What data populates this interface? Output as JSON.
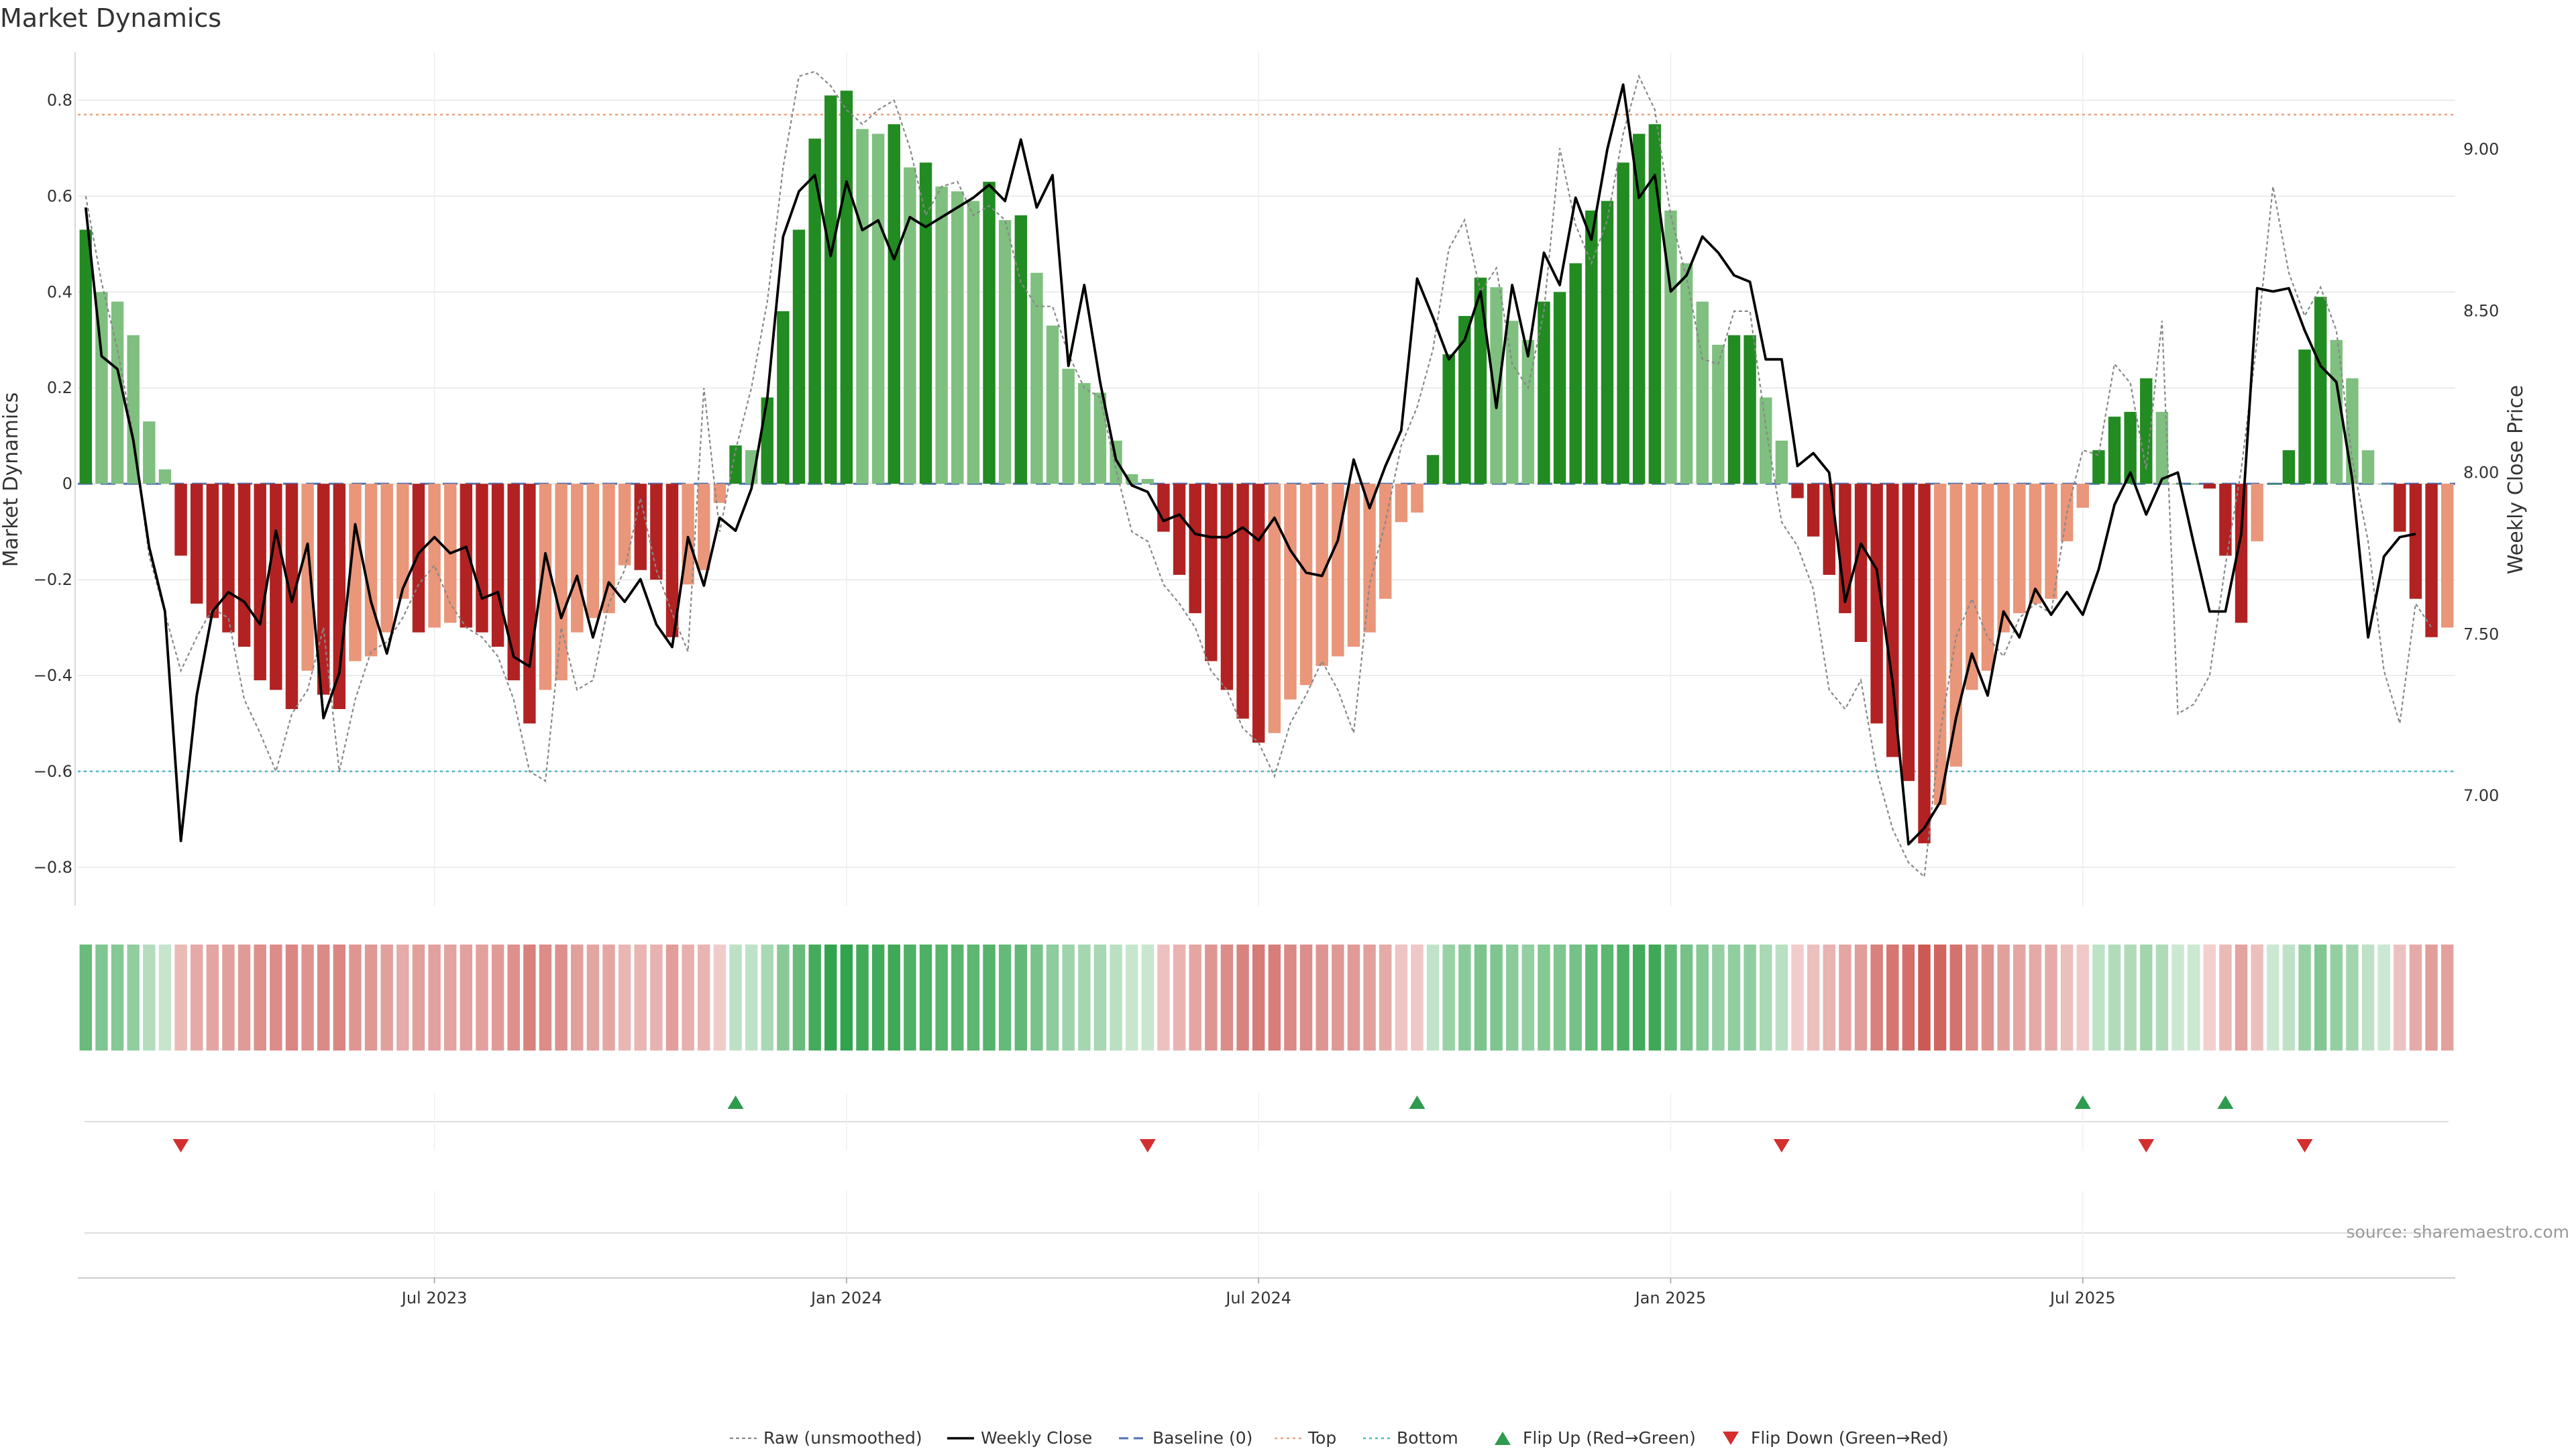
{
  "chart_data": {
    "type": "bar",
    "title": "Market Dynamics",
    "ylabel_left": "Market Dynamics",
    "ylabel_right": "Weekly Close Price",
    "ylim_left": [
      -0.88,
      0.9
    ],
    "ylim_right": [
      6.66,
      9.3
    ],
    "yticks_left": [
      0.8,
      0.6,
      0.4,
      0.2,
      0,
      -0.2,
      -0.4,
      -0.6,
      -0.8
    ],
    "yticks_left_labels": [
      "0.8",
      "0.6",
      "0.4",
      "0.2",
      "0",
      "−0.2",
      "−0.4",
      "−0.6",
      "−0.8"
    ],
    "yticks_right": [
      9.0,
      8.5,
      8.0,
      7.5,
      7.0
    ],
    "yticks_right_labels": [
      "9.00",
      "8.50",
      "8.00",
      "7.50",
      "7.00"
    ],
    "xticks": [
      {
        "label": "Jul 2023",
        "week": 22
      },
      {
        "label": "Jan 2024",
        "week": 48
      },
      {
        "label": "Jul 2024",
        "week": 74
      },
      {
        "label": "Jan 2025",
        "week": 100
      },
      {
        "label": "Jul 2025",
        "week": 126
      }
    ],
    "top_level": 0.77,
    "bottom_level": -0.6,
    "baseline": 0,
    "series": [
      {
        "name": "Market Dynamics",
        "values": [
          0.53,
          0.4,
          0.38,
          0.31,
          0.13,
          0.03,
          -0.15,
          -0.25,
          -0.28,
          -0.31,
          -0.34,
          -0.41,
          -0.43,
          -0.47,
          -0.39,
          -0.44,
          -0.47,
          -0.37,
          -0.36,
          -0.31,
          -0.24,
          -0.31,
          -0.3,
          -0.29,
          -0.3,
          -0.31,
          -0.34,
          -0.41,
          -0.5,
          -0.43,
          -0.41,
          -0.31,
          -0.28,
          -0.27,
          -0.17,
          -0.18,
          -0.2,
          -0.32,
          -0.21,
          -0.18,
          -0.04,
          0.08,
          0.07,
          0.18,
          0.36,
          0.53,
          0.72,
          0.81,
          0.82,
          0.74,
          0.73,
          0.75,
          0.66,
          0.67,
          0.62,
          0.61,
          0.59,
          0.63,
          0.55,
          0.56,
          0.44,
          0.33,
          0.24,
          0.21,
          0.19,
          0.09,
          0.02,
          0.01,
          -0.1,
          -0.19,
          -0.27,
          -0.37,
          -0.43,
          -0.49,
          -0.54,
          -0.52,
          -0.45,
          -0.42,
          -0.38,
          -0.36,
          -0.34,
          -0.31,
          -0.24,
          -0.08,
          -0.06,
          0.06,
          0.27,
          0.35,
          0.43,
          0.41,
          0.34,
          0.3,
          0.38,
          0.4,
          0.46,
          0.57,
          0.59,
          0.67,
          0.73,
          0.75,
          0.57,
          0.46,
          0.38,
          0.29,
          0.31,
          0.31,
          0.18,
          0.09,
          -0.03,
          -0.11,
          -0.19,
          -0.27,
          -0.33,
          -0.5,
          -0.57,
          -0.62,
          -0.75,
          -0.67,
          -0.59,
          -0.43,
          -0.39,
          -0.31,
          -0.27,
          -0.25,
          -0.24,
          -0.12,
          -0.05,
          0.07,
          0.14,
          0.15,
          0.22,
          0.15,
          0.0,
          0.0,
          -0.01,
          -0.15,
          -0.29,
          -0.12,
          0.0,
          0.07,
          0.28,
          0.39,
          0.3,
          0.22,
          0.07,
          0.0,
          -0.1,
          -0.24,
          -0.32,
          -0.3
        ]
      },
      {
        "name": "Raw (unsmoothed)",
        "values": [
          0.6,
          0.42,
          0.28,
          0.1,
          -0.15,
          -0.27,
          -0.39,
          -0.32,
          -0.26,
          -0.28,
          -0.45,
          -0.52,
          -0.6,
          -0.48,
          -0.43,
          -0.3,
          -0.6,
          -0.45,
          -0.35,
          -0.33,
          -0.28,
          -0.21,
          -0.17,
          -0.25,
          -0.3,
          -0.32,
          -0.36,
          -0.45,
          -0.6,
          -0.62,
          -0.3,
          -0.43,
          -0.41,
          -0.25,
          -0.18,
          -0.03,
          -0.18,
          -0.27,
          -0.35,
          0.2,
          -0.1,
          0.07,
          0.2,
          0.38,
          0.66,
          0.85,
          0.86,
          0.83,
          0.78,
          0.75,
          0.78,
          0.8,
          0.7,
          0.56,
          0.62,
          0.63,
          0.56,
          0.58,
          0.55,
          0.42,
          0.37,
          0.37,
          0.27,
          0.2,
          0.18,
          0.03,
          -0.1,
          -0.12,
          -0.21,
          -0.25,
          -0.3,
          -0.39,
          -0.43,
          -0.51,
          -0.54,
          -0.61,
          -0.5,
          -0.44,
          -0.37,
          -0.43,
          -0.52,
          -0.21,
          -0.08,
          0.08,
          0.16,
          0.28,
          0.49,
          0.55,
          0.4,
          0.45,
          0.25,
          0.2,
          0.36,
          0.7,
          0.54,
          0.46,
          0.55,
          0.73,
          0.85,
          0.78,
          0.56,
          0.43,
          0.26,
          0.25,
          0.36,
          0.36,
          0.12,
          -0.08,
          -0.13,
          -0.22,
          -0.43,
          -0.47,
          -0.41,
          -0.6,
          -0.72,
          -0.79,
          -0.82,
          -0.52,
          -0.32,
          -0.24,
          -0.32,
          -0.36,
          -0.28,
          -0.25,
          -0.27,
          -0.06,
          0.07,
          0.06,
          0.25,
          0.21,
          0.03,
          0.34,
          -0.48,
          -0.46,
          -0.4,
          -0.17,
          0.03,
          0.3,
          0.62,
          0.44,
          0.35,
          0.41,
          0.32,
          0.05,
          -0.12,
          -0.39,
          -0.5,
          -0.25,
          -0.3
        ]
      },
      {
        "name": "Weekly Close",
        "values": [
          8.82,
          8.36,
          8.32,
          8.1,
          7.77,
          7.57,
          6.86,
          7.31,
          7.57,
          7.63,
          7.6,
          7.53,
          7.82,
          7.6,
          7.78,
          7.24,
          7.38,
          7.84,
          7.6,
          7.44,
          7.64,
          7.75,
          7.8,
          7.75,
          7.77,
          7.61,
          7.63,
          7.43,
          7.4,
          7.75,
          7.55,
          7.68,
          7.49,
          7.66,
          7.6,
          7.67,
          7.53,
          7.46,
          7.8,
          7.65,
          7.86,
          7.82,
          7.95,
          8.23,
          8.73,
          8.87,
          8.92,
          8.67,
          8.9,
          8.75,
          8.78,
          8.66,
          8.79,
          8.76,
          8.79,
          8.82,
          8.85,
          8.89,
          8.84,
          9.03,
          8.82,
          8.92,
          8.33,
          8.58,
          8.28,
          8.04,
          7.96,
          7.94,
          7.85,
          7.87,
          7.81,
          7.8,
          7.8,
          7.83,
          7.79,
          7.86,
          7.76,
          7.69,
          7.68,
          7.79,
          8.04,
          7.89,
          8.02,
          8.13,
          8.6,
          8.48,
          8.35,
          8.41,
          8.56,
          8.2,
          8.58,
          8.36,
          8.68,
          8.58,
          8.85,
          8.72,
          9.0,
          9.2,
          8.85,
          8.92,
          8.56,
          8.61,
          8.73,
          8.68,
          8.61,
          8.59,
          8.35,
          8.35,
          8.02,
          8.06,
          8.0,
          7.6,
          7.78,
          7.7,
          7.35,
          6.85,
          6.9,
          6.98,
          7.24,
          7.44,
          7.31,
          7.57,
          7.49,
          7.64,
          7.56,
          7.63,
          7.56,
          7.7,
          7.9,
          8.0,
          7.87,
          7.98,
          8.0,
          7.78,
          7.57,
          7.57,
          7.81,
          8.57,
          8.56,
          8.57,
          8.44,
          8.33,
          8.28,
          7.98,
          7.49,
          7.74,
          7.8,
          7.81
        ]
      }
    ],
    "flip_up_weeks": [
      41,
      84,
      126,
      135
    ],
    "flip_down_weeks": [
      6,
      67,
      107,
      130,
      140
    ],
    "legend": [
      {
        "label": "Raw (unsmoothed)",
        "style": "dotted-gray"
      },
      {
        "label": "Weekly Close",
        "style": "solid-black"
      },
      {
        "label": "Baseline (0)",
        "style": "dashed-blue"
      },
      {
        "label": "Top",
        "style": "dotted-orange"
      },
      {
        "label": "Bottom",
        "style": "dotted-cyan"
      },
      {
        "label": "Flip Up (Red→Green)",
        "style": "triangle-up-green"
      },
      {
        "label": "Flip Down (Green→Red)",
        "style": "triangle-down-red"
      }
    ],
    "source": "source: sharemaestro.com"
  },
  "colors": {
    "strong_green": "#228B22",
    "light_green": "#7FBF7F",
    "strong_red": "#B22222",
    "light_red": "#E9967A",
    "close_line": "#000000",
    "raw_line": "#888888",
    "baseline": "#4C72B0",
    "top": "#E8A27C",
    "bottom": "#4FB8C8",
    "flip_up": "#2E9B4E",
    "flip_down": "#D32F2F"
  }
}
